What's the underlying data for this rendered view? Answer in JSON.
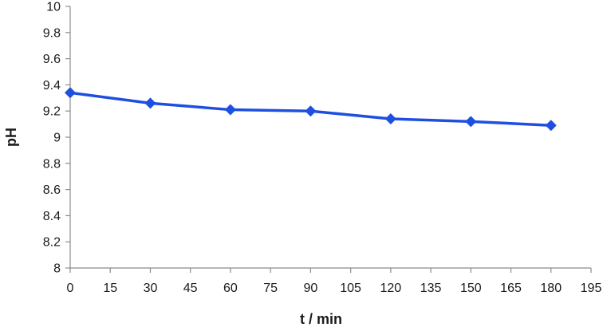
{
  "chart_data": {
    "type": "line",
    "title": "",
    "xlabel": "t / min",
    "ylabel": "pH",
    "xlim": [
      0,
      195
    ],
    "ylim": [
      8,
      10
    ],
    "xticks": [
      0,
      15,
      30,
      45,
      60,
      75,
      90,
      105,
      120,
      135,
      150,
      165,
      180,
      195
    ],
    "yticks": [
      8,
      8.2,
      8.4,
      8.6,
      8.8,
      9,
      9.2,
      9.4,
      9.6,
      9.8,
      10
    ],
    "grid": false,
    "legend": "none",
    "series": [
      {
        "color": "#1f4fe0",
        "marker": "diamond",
        "x": [
          0,
          30,
          60,
          90,
          120,
          150,
          180
        ],
        "y": [
          9.34,
          9.26,
          9.21,
          9.2,
          9.14,
          9.12,
          9.09
        ]
      }
    ]
  }
}
